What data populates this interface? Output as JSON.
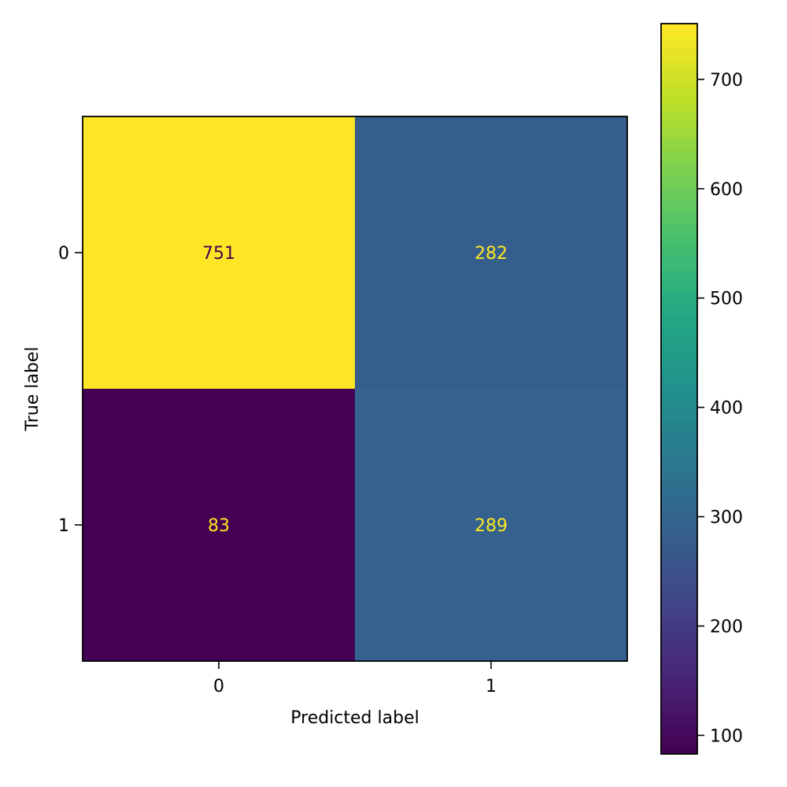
{
  "chart_data": {
    "type": "heatmap",
    "x_categories": [
      "0",
      "1"
    ],
    "y_categories": [
      "0",
      "1"
    ],
    "values": [
      [
        751,
        282
      ],
      [
        83,
        289
      ]
    ],
    "xlabel": "Predicted label",
    "ylabel": "True label",
    "colormap": "viridis",
    "colorbar": {
      "range": [
        83,
        751
      ],
      "ticks": [
        100,
        200,
        300,
        400,
        500,
        600,
        700
      ],
      "position": "right"
    },
    "grid": false
  }
}
